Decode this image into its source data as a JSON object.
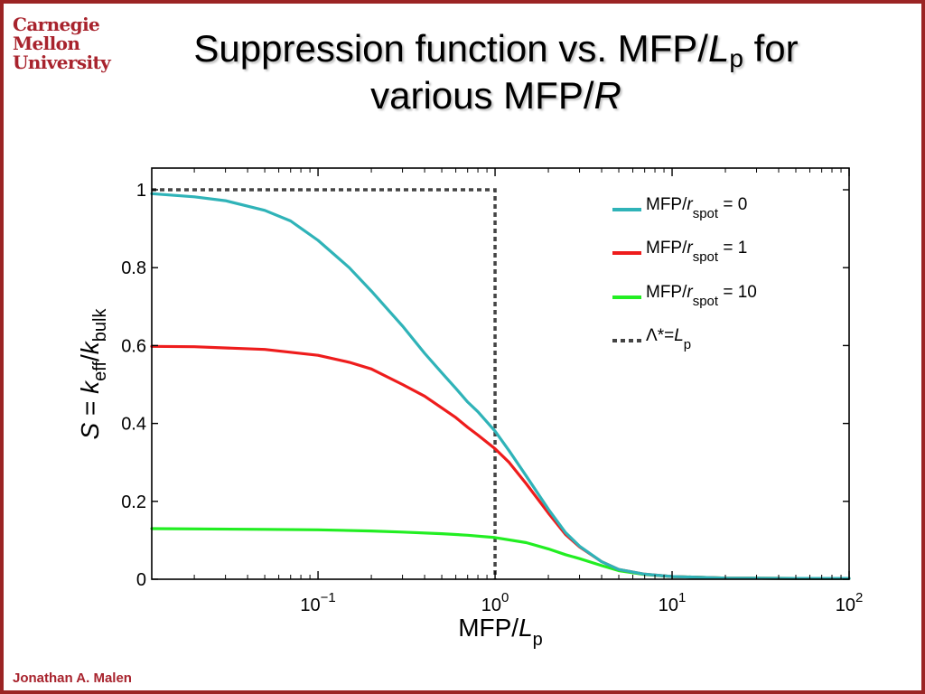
{
  "logo": {
    "line1": "Carnegie",
    "line2": "Mellon",
    "line3": "University"
  },
  "title": {
    "part1": "Suppression function vs. MFP/",
    "part2_italic": "L",
    "part2_sub": "p",
    "part3": " for",
    "part4": "various MFP/",
    "part5_italic": "R"
  },
  "footer": {
    "author": "Jonathan A. Malen"
  },
  "colors": {
    "frame": "#9b2424",
    "logo_text": "#a8232d",
    "series_0": "#2fb3b8",
    "series_1": "#ee1c1c",
    "series_10": "#22ee22",
    "reference_line": "#444444"
  },
  "chart_data": {
    "type": "line",
    "x_scale": "log",
    "xlim": [
      0.0115,
      100
    ],
    "ylim": [
      0,
      1
    ],
    "xticks": [
      {
        "base": "10",
        "exp": "−1",
        "value": 0.1
      },
      {
        "base": "10",
        "exp": "0",
        "value": 1
      },
      {
        "base": "10",
        "exp": "1",
        "value": 10
      },
      {
        "base": "10",
        "exp": "2",
        "value": 100
      }
    ],
    "yticks": [
      "0",
      "0.2",
      "0.4",
      "0.6",
      "0.8",
      "1"
    ],
    "xlabel": {
      "text": "MFP/",
      "italic": "L",
      "sub": "p"
    },
    "ylabel": {
      "s": "S",
      "eq": " = ",
      "k1": "k",
      "sub1": "eff",
      "slash": "/",
      "k2": "k",
      "sub2": "bulk"
    },
    "legend_position": "top-right",
    "grid": false,
    "series": [
      {
        "legend_prefix": "MFP/",
        "legend_italic": "r",
        "legend_sub": "spot",
        "legend_suffix": " = 0",
        "color": "#2fb3b8",
        "x": [
          0.0115,
          0.02,
          0.03,
          0.05,
          0.07,
          0.1,
          0.15,
          0.2,
          0.3,
          0.4,
          0.5,
          0.6,
          0.7,
          0.8,
          1,
          1.2,
          1.5,
          2,
          2.5,
          3,
          4,
          5,
          7,
          10,
          20,
          50,
          100
        ],
        "y": [
          0.99,
          0.982,
          0.972,
          0.947,
          0.92,
          0.87,
          0.8,
          0.74,
          0.65,
          0.58,
          0.53,
          0.49,
          0.455,
          0.43,
          0.38,
          0.33,
          0.265,
          0.18,
          0.12,
          0.085,
          0.045,
          0.025,
          0.013,
          0.007,
          0.003,
          0.002,
          0.002
        ]
      },
      {
        "legend_prefix": "MFP/",
        "legend_italic": "r",
        "legend_sub": "spot",
        "legend_suffix": " = 1",
        "color": "#ee1c1c",
        "x": [
          0.0115,
          0.02,
          0.05,
          0.1,
          0.15,
          0.2,
          0.3,
          0.4,
          0.5,
          0.6,
          0.7,
          0.8,
          1,
          1.2,
          1.5,
          2,
          2.5,
          3,
          4,
          5,
          7,
          10,
          20,
          50,
          100
        ],
        "y": [
          0.598,
          0.597,
          0.59,
          0.575,
          0.557,
          0.54,
          0.5,
          0.47,
          0.44,
          0.415,
          0.39,
          0.37,
          0.335,
          0.3,
          0.245,
          0.17,
          0.115,
          0.083,
          0.045,
          0.025,
          0.013,
          0.007,
          0.003,
          0.002,
          0.002
        ]
      },
      {
        "legend_prefix": "MFP/",
        "legend_italic": "r",
        "legend_sub": "spot",
        "legend_suffix": " = 10",
        "color": "#22ee22",
        "x": [
          0.0115,
          0.05,
          0.1,
          0.2,
          0.3,
          0.5,
          0.7,
          1,
          1.5,
          2,
          2.5,
          3,
          4,
          5,
          7,
          10,
          20,
          50,
          100
        ],
        "y": [
          0.13,
          0.128,
          0.127,
          0.124,
          0.121,
          0.117,
          0.113,
          0.107,
          0.094,
          0.078,
          0.063,
          0.053,
          0.035,
          0.022,
          0.012,
          0.007,
          0.003,
          0.002,
          0.002
        ]
      }
    ],
    "reference_line": {
      "legend_greek": "Λ",
      "legend_mid": "*=",
      "legend_italic": "L",
      "legend_sub": "p",
      "color": "#444444",
      "x": [
        0.0115,
        1,
        1
      ],
      "y": [
        1,
        1,
        0
      ]
    }
  }
}
